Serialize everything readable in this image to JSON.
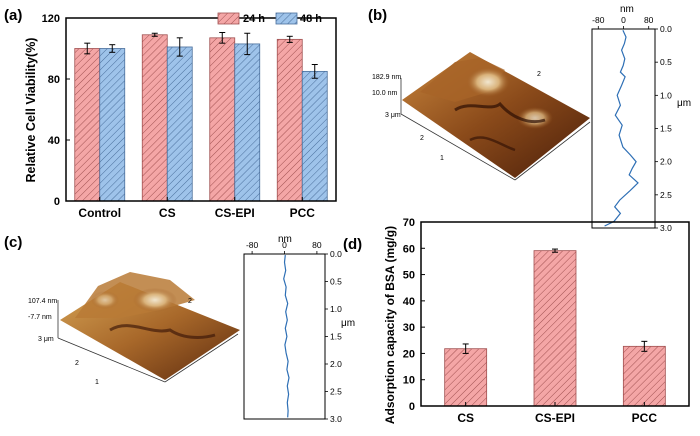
{
  "panels": {
    "a": {
      "label": "(a)"
    },
    "b": {
      "label": "(b)"
    },
    "c": {
      "label": "(c)"
    },
    "d": {
      "label": "(d)"
    }
  },
  "colors": {
    "series_24h": "#f4a6a6",
    "series_24h_edge": "#a05050",
    "series_48h": "#9ec3ea",
    "series_48h_edge": "#4a6f9c",
    "profile_line": "#2e6fb5",
    "afm_dark": "#4a1e0a",
    "afm_mid": "#9c5a22",
    "afm_light": "#e8d2a0"
  },
  "afm_b": {
    "z_max": "182.9 nm",
    "z_min": "10.0 nm",
    "axis_y_label": "3 μm",
    "ticks": [
      "1",
      "2",
      "2"
    ],
    "profile": {
      "unit_top": "nm",
      "x_ticks": [
        "-80",
        "0",
        "80"
      ],
      "y_ticks": [
        "0.0",
        "0.5",
        "1.0",
        "1.5",
        "2.0",
        "2.5",
        "3.0"
      ],
      "y_unit": "μm",
      "x_min": -100,
      "x_max": 100,
      "points": [
        [
          -2,
          0.02
        ],
        [
          8,
          0.12
        ],
        [
          3,
          0.22
        ],
        [
          -6,
          0.32
        ],
        [
          4,
          0.45
        ],
        [
          -1,
          0.55
        ],
        [
          -10,
          0.65
        ],
        [
          5,
          0.72
        ],
        [
          -6,
          0.85
        ],
        [
          -20,
          1.0
        ],
        [
          -10,
          1.15
        ],
        [
          -26,
          1.3
        ],
        [
          -4,
          1.45
        ],
        [
          -14,
          1.6
        ],
        [
          -2,
          1.78
        ],
        [
          22,
          1.9
        ],
        [
          40,
          2.0
        ],
        [
          28,
          2.1
        ],
        [
          18,
          2.2
        ],
        [
          46,
          2.32
        ],
        [
          18,
          2.45
        ],
        [
          -12,
          2.58
        ],
        [
          -28,
          2.68
        ],
        [
          -10,
          2.78
        ],
        [
          -30,
          2.9
        ],
        [
          -60,
          2.97
        ]
      ]
    }
  },
  "afm_c": {
    "z_max": "107.4 nm",
    "z_min": "-7.7 nm",
    "axis_y_label": "3 μm",
    "ticks": [
      "1",
      "2",
      "2"
    ],
    "profile": {
      "unit_top": "nm",
      "x_ticks": [
        "-80",
        "0",
        "80"
      ],
      "y_ticks": [
        "0.0",
        "0.5",
        "1.0",
        "1.5",
        "2.0",
        "2.5",
        "3.0"
      ],
      "y_unit": "μm",
      "x_min": -100,
      "x_max": 100,
      "points": [
        [
          2,
          0.02
        ],
        [
          0,
          0.15
        ],
        [
          3,
          0.3
        ],
        [
          -2,
          0.45
        ],
        [
          4,
          0.6
        ],
        [
          2,
          0.75
        ],
        [
          8,
          0.9
        ],
        [
          3,
          1.05
        ],
        [
          7,
          1.2
        ],
        [
          2,
          1.35
        ],
        [
          6,
          1.5
        ],
        [
          1,
          1.65
        ],
        [
          4,
          1.8
        ],
        [
          9,
          1.95
        ],
        [
          6,
          2.1
        ],
        [
          11,
          2.25
        ],
        [
          7,
          2.4
        ],
        [
          10,
          2.55
        ],
        [
          7,
          2.7
        ],
        [
          9,
          2.85
        ],
        [
          8,
          2.97
        ]
      ]
    }
  },
  "chart_data": [
    {
      "type": "bar",
      "panel": "a",
      "title": "",
      "xlabel": "",
      "ylabel": "Relative Cell Viability(%)",
      "ylim": [
        0,
        120
      ],
      "yticks": [
        "0",
        "40",
        "80",
        "120"
      ],
      "categories": [
        "Control",
        "CS",
        "CS-EPI",
        "PCC"
      ],
      "series": [
        {
          "name": "24 h",
          "values": [
            100,
            109,
            107,
            106
          ],
          "errors": [
            3.5,
            1,
            3.5,
            2
          ]
        },
        {
          "name": "48 h",
          "values": [
            100,
            101,
            103,
            85
          ],
          "errors": [
            2.5,
            6,
            7,
            4.5
          ]
        }
      ],
      "legend": [
        "24 h",
        "48 h"
      ],
      "legend_position": "top-right"
    },
    {
      "type": "bar",
      "panel": "d",
      "title": "",
      "xlabel": "",
      "ylabel": "Adsorption capacity of BSA (mg/g)",
      "ylim": [
        0,
        70
      ],
      "yticks": [
        "0",
        "10",
        "20",
        "30",
        "40",
        "50",
        "60",
        "70"
      ],
      "categories": [
        "CS",
        "CS-EPI",
        "PCC"
      ],
      "values": [
        21.8,
        59.1,
        22.7
      ],
      "errors": [
        1.8,
        0.6,
        1.9
      ]
    }
  ]
}
